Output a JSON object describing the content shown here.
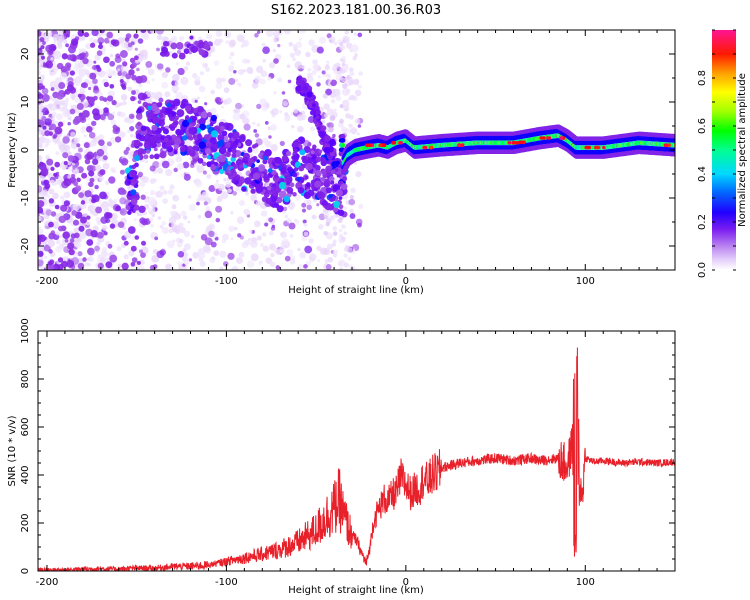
{
  "title": "S162.2023.181.00.36.R03",
  "chart_data": [
    {
      "type": "heatmap",
      "xlabel": "Height of straight line (km)",
      "ylabel": "Frequency (Hz)",
      "xlim": [
        -205,
        150
      ],
      "ylim": [
        -25,
        25
      ],
      "xticks": [
        -200,
        -100,
        0,
        100
      ],
      "yticks": [
        -20,
        -10,
        0,
        10,
        20
      ],
      "grid": false,
      "colorbar": {
        "label": "Normalized spectral amplitude",
        "range": [
          0,
          1
        ],
        "ticks": [
          "0.0",
          "0.2",
          "0.4",
          "0.6",
          "0.8"
        ],
        "colormap": [
          "#ffffff",
          "#e6d2fa",
          "#8a2be2",
          "#5a00ff",
          "#0000ff",
          "#00c8ff",
          "#00ffa0",
          "#00ff00",
          "#c8ff00",
          "#ffff00",
          "#ffa500",
          "#ff0000",
          "#ff1493"
        ]
      },
      "features": {
        "main_ridge": [
          [
            -35,
            -3
          ],
          [
            -32,
            -1
          ],
          [
            -28,
            0
          ],
          [
            -22,
            0.5
          ],
          [
            -15,
            1
          ],
          [
            -10,
            0.5
          ],
          [
            -5,
            1.5
          ],
          [
            0,
            2
          ],
          [
            5,
            0.5
          ],
          [
            20,
            1
          ],
          [
            40,
            1.5
          ],
          [
            60,
            1.5
          ],
          [
            75,
            2.5
          ],
          [
            85,
            3
          ],
          [
            90,
            2
          ],
          [
            95,
            0.5
          ],
          [
            110,
            0.5
          ],
          [
            130,
            1.5
          ],
          [
            150,
            1
          ]
        ],
        "scatter_band": [
          [
            -150,
            3
          ],
          [
            -140,
            4
          ],
          [
            -130,
            5
          ],
          [
            -120,
            4.5
          ],
          [
            -110,
            2
          ],
          [
            -100,
            0
          ],
          [
            -90,
            -3
          ],
          [
            -80,
            -5
          ],
          [
            -70,
            -7
          ],
          [
            -60,
            -3
          ],
          [
            -50,
            -5
          ],
          [
            -40,
            -7
          ],
          [
            -35,
            -8
          ]
        ],
        "upper_arc": [
          [
            -60,
            14
          ],
          [
            -55,
            12
          ],
          [
            -50,
            8
          ],
          [
            -48,
            5
          ],
          [
            -45,
            2
          ],
          [
            -42,
            0
          ]
        ],
        "top_left_cluster": [
          [
            -130,
            21
          ],
          [
            -120,
            22
          ],
          [
            -115,
            21
          ]
        ]
      }
    },
    {
      "type": "line",
      "xlabel": "Height of straight line (km)",
      "ylabel": "SNR (10 * v/v)",
      "xlim": [
        -205,
        150
      ],
      "ylim": [
        0,
        1000
      ],
      "xticks": [
        -200,
        -100,
        0,
        100
      ],
      "yticks": [
        0,
        200,
        400,
        600,
        800,
        1000
      ],
      "color": "#e8202a",
      "series": [
        {
          "x": [
            -205,
            -190,
            -180,
            -170,
            -160,
            -150,
            -140,
            -130,
            -120,
            -110,
            -100,
            -90,
            -80,
            -70,
            -60,
            -50,
            -45,
            -40,
            -37,
            -35,
            -32,
            -30,
            -27,
            -25,
            -22,
            -20,
            -18,
            -15,
            -12,
            -10,
            -7,
            -5,
            -3,
            0,
            3,
            5,
            8,
            10,
            12,
            15,
            18,
            20,
            25,
            30,
            35,
            40,
            45,
            50,
            55,
            60,
            65,
            70,
            75,
            80,
            85,
            88,
            90,
            92,
            94,
            95,
            96,
            97,
            98,
            100,
            105,
            110,
            120,
            130,
            140,
            150
          ],
          "y": [
            5,
            5,
            8,
            10,
            8,
            12,
            12,
            18,
            20,
            25,
            40,
            55,
            70,
            90,
            120,
            170,
            220,
            260,
            300,
            240,
            180,
            150,
            120,
            80,
            30,
            100,
            210,
            260,
            300,
            290,
            320,
            330,
            390,
            360,
            320,
            340,
            350,
            390,
            370,
            400,
            410,
            430,
            440,
            450,
            455,
            460,
            465,
            470,
            465,
            460,
            465,
            470,
            460,
            465,
            470,
            450,
            440,
            500,
            620,
            1000,
            560,
            380,
            300,
            470,
            455,
            460,
            450,
            455,
            450,
            455
          ]
        }
      ]
    }
  ]
}
